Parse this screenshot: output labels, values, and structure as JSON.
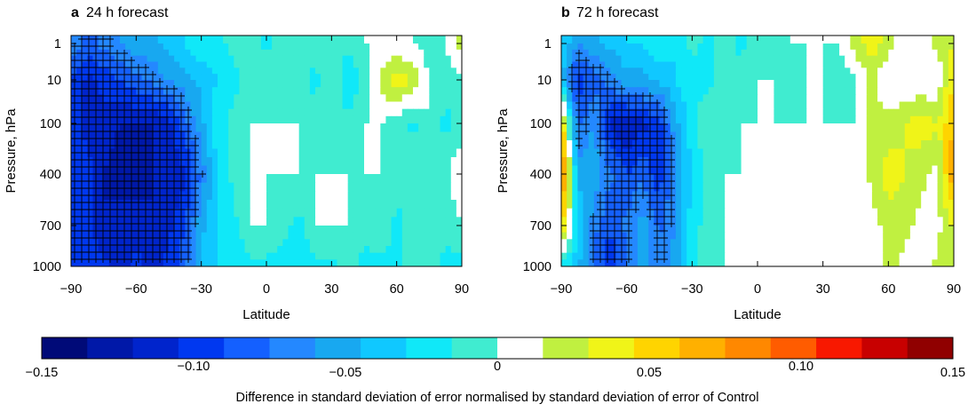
{
  "chart_data": [
    {
      "type": "heatmap",
      "panel_letter": "a",
      "title": "24 h forecast",
      "xlabel": "Latitude",
      "ylabel": "Pressure, hPa",
      "x_ticks": [
        "−90",
        "−60",
        "−30",
        "0",
        "30",
        "60",
        "90"
      ],
      "x_tick_values": [
        -90,
        -60,
        -30,
        0,
        30,
        60,
        90
      ],
      "y_ticks": [
        "1",
        "10",
        "100",
        "400",
        "700",
        "1000"
      ],
      "y_tick_values": [
        1,
        10,
        100,
        400,
        700,
        1000
      ],
      "xlim": [
        -90,
        90
      ],
      "ylim": [
        1,
        1000
      ],
      "lat_nodes": [
        -90,
        -82.5,
        -75,
        -67.5,
        -60,
        -52.5,
        -45,
        -37.5,
        -30,
        -22.5,
        -15,
        -7.5,
        0,
        7.5,
        15,
        22.5,
        30,
        37.5,
        45,
        52.5,
        60,
        67.5,
        75,
        82.5,
        90
      ],
      "level_nodes": [
        1,
        10,
        100,
        400,
        700,
        1000
      ],
      "values": [
        [
          -0.06,
          -0.08,
          -0.07,
          -0.06,
          -0.05,
          -0.05,
          -0.04,
          -0.03,
          -0.02,
          -0.02,
          -0.01,
          -0.01,
          -0.02,
          -0.01,
          0.0,
          -0.01,
          0.0,
          -0.01,
          0.0,
          0.0,
          0.0,
          0.0,
          -0.01,
          0.0,
          0.02
        ],
        [
          -0.09,
          -0.11,
          -0.1,
          -0.09,
          -0.08,
          -0.07,
          -0.06,
          -0.05,
          -0.04,
          -0.03,
          -0.02,
          -0.01,
          0.0,
          -0.01,
          -0.01,
          -0.02,
          0.0,
          -0.03,
          -0.01,
          0.02,
          0.04,
          0.03,
          0.0,
          -0.01,
          0.0
        ],
        [
          -0.09,
          -0.11,
          -0.11,
          -0.12,
          -0.12,
          -0.12,
          -0.11,
          -0.08,
          -0.05,
          -0.02,
          -0.01,
          0.0,
          0.0,
          0.0,
          0.0,
          -0.01,
          0.0,
          -0.01,
          0.0,
          0.0,
          -0.01,
          -0.02,
          0.0,
          -0.02,
          -0.01
        ],
        [
          -0.1,
          -0.1,
          -0.12,
          -0.13,
          -0.13,
          -0.12,
          -0.12,
          -0.11,
          -0.07,
          -0.03,
          -0.01,
          0.0,
          0.0,
          0.0,
          0.0,
          0.0,
          0.0,
          0.0,
          0.0,
          0.0,
          -0.01,
          0.0,
          0.0,
          -0.01,
          0.02
        ],
        [
          -0.1,
          -0.1,
          -0.12,
          -0.11,
          -0.11,
          -0.12,
          -0.11,
          -0.09,
          -0.05,
          -0.03,
          -0.02,
          0.0,
          0.0,
          -0.01,
          -0.02,
          0.0,
          0.0,
          0.0,
          -0.01,
          0.0,
          -0.02,
          -0.01,
          0.0,
          -0.01,
          0.0
        ],
        [
          -0.1,
          -0.09,
          -0.1,
          -0.11,
          -0.1,
          -0.11,
          -0.1,
          -0.08,
          -0.04,
          -0.03,
          -0.03,
          -0.02,
          -0.02,
          -0.02,
          -0.03,
          -0.02,
          -0.02,
          -0.01,
          -0.02,
          -0.02,
          -0.02,
          -0.01,
          -0.01,
          -0.02,
          -0.02
        ]
      ]
    },
    {
      "type": "heatmap",
      "panel_letter": "b",
      "title": "72 h forecast",
      "xlabel": "Latitude",
      "ylabel": "Pressure, hPa",
      "x_ticks": [
        "−90",
        "−60",
        "−30",
        "0",
        "30",
        "60",
        "90"
      ],
      "x_tick_values": [
        -90,
        -60,
        -30,
        0,
        30,
        60,
        90
      ],
      "y_ticks": [
        "1",
        "10",
        "100",
        "400",
        "700",
        "1000"
      ],
      "y_tick_values": [
        1,
        10,
        100,
        400,
        700,
        1000
      ],
      "xlim": [
        -90,
        90
      ],
      "ylim": [
        1,
        1000
      ],
      "lat_nodes": [
        -90,
        -82.5,
        -75,
        -67.5,
        -60,
        -52.5,
        -45,
        -37.5,
        -30,
        -22.5,
        -15,
        -7.5,
        0,
        7.5,
        15,
        22.5,
        30,
        37.5,
        45,
        52.5,
        60,
        67.5,
        75,
        82.5,
        90
      ],
      "level_nodes": [
        1,
        10,
        100,
        400,
        700,
        1000
      ],
      "values": [
        [
          -0.03,
          -0.06,
          -0.05,
          -0.04,
          -0.03,
          -0.03,
          -0.02,
          -0.03,
          -0.01,
          -0.02,
          -0.01,
          -0.02,
          0.0,
          -0.01,
          0.0,
          0.0,
          0.0,
          0.0,
          0.02,
          0.04,
          0.02,
          0.0,
          0.0,
          0.02,
          0.03
        ],
        [
          -0.04,
          -0.1,
          -0.08,
          -0.07,
          -0.05,
          -0.05,
          -0.04,
          -0.03,
          -0.02,
          -0.02,
          -0.01,
          -0.01,
          0.0,
          0.0,
          -0.01,
          0.0,
          0.0,
          -0.01,
          0.0,
          0.02,
          0.0,
          0.0,
          0.0,
          0.0,
          0.05
        ],
        [
          0.06,
          -0.08,
          -0.06,
          -0.11,
          -0.12,
          -0.11,
          -0.1,
          -0.05,
          -0.02,
          0.0,
          -0.01,
          0.0,
          0.0,
          0.0,
          0.0,
          0.0,
          0.0,
          0.0,
          0.0,
          0.02,
          0.02,
          0.03,
          0.04,
          0.03,
          0.06
        ],
        [
          0.1,
          -0.05,
          -0.05,
          -0.07,
          -0.09,
          -0.08,
          -0.1,
          -0.06,
          -0.03,
          -0.01,
          0.0,
          0.0,
          0.0,
          0.0,
          0.0,
          0.0,
          0.0,
          0.0,
          0.0,
          0.02,
          0.04,
          0.03,
          0.02,
          0.01,
          0.08
        ],
        [
          0.05,
          -0.03,
          -0.07,
          -0.09,
          -0.07,
          -0.05,
          -0.08,
          -0.06,
          -0.02,
          -0.01,
          0.0,
          0.0,
          0.0,
          0.01,
          0.0,
          0.0,
          0.0,
          0.0,
          0.0,
          0.01,
          0.02,
          0.02,
          0.01,
          0.01,
          0.03
        ],
        [
          -0.02,
          -0.04,
          -0.08,
          -0.1,
          -0.08,
          -0.05,
          -0.07,
          -0.05,
          -0.02,
          -0.01,
          0.0,
          0.0,
          0.0,
          0.01,
          0.0,
          0.01,
          0.0,
          0.01,
          0.0,
          0.0,
          0.02,
          0.01,
          0.0,
          0.02,
          0.03
        ]
      ]
    }
  ],
  "colorbar": {
    "label": "Difference in standard deviation of error normalised by standard deviation of error of Control",
    "min": -0.15,
    "max": 0.15,
    "step": 0.015,
    "colors": [
      "#000a78",
      "#0018a8",
      "#0024cc",
      "#0038f0",
      "#1460ff",
      "#2488ff",
      "#18a8f0",
      "#10c8ff",
      "#10e8f8",
      "#40ecd0",
      "#ffffff",
      "#c0f040",
      "#f0f418",
      "#ffd400",
      "#ffb000",
      "#ff8800",
      "#ff5c00",
      "#f81800",
      "#c80000",
      "#900000"
    ],
    "tick_values": [
      -0.15,
      -0.1,
      -0.05,
      0,
      0.05,
      0.1,
      0.15
    ],
    "tick_labels": [
      "−0.15",
      "−0.10",
      "−0.05",
      "0",
      "0.05",
      "0.10",
      "0.15"
    ]
  },
  "significance_note": "hatched crosses mark statistically significant regions"
}
